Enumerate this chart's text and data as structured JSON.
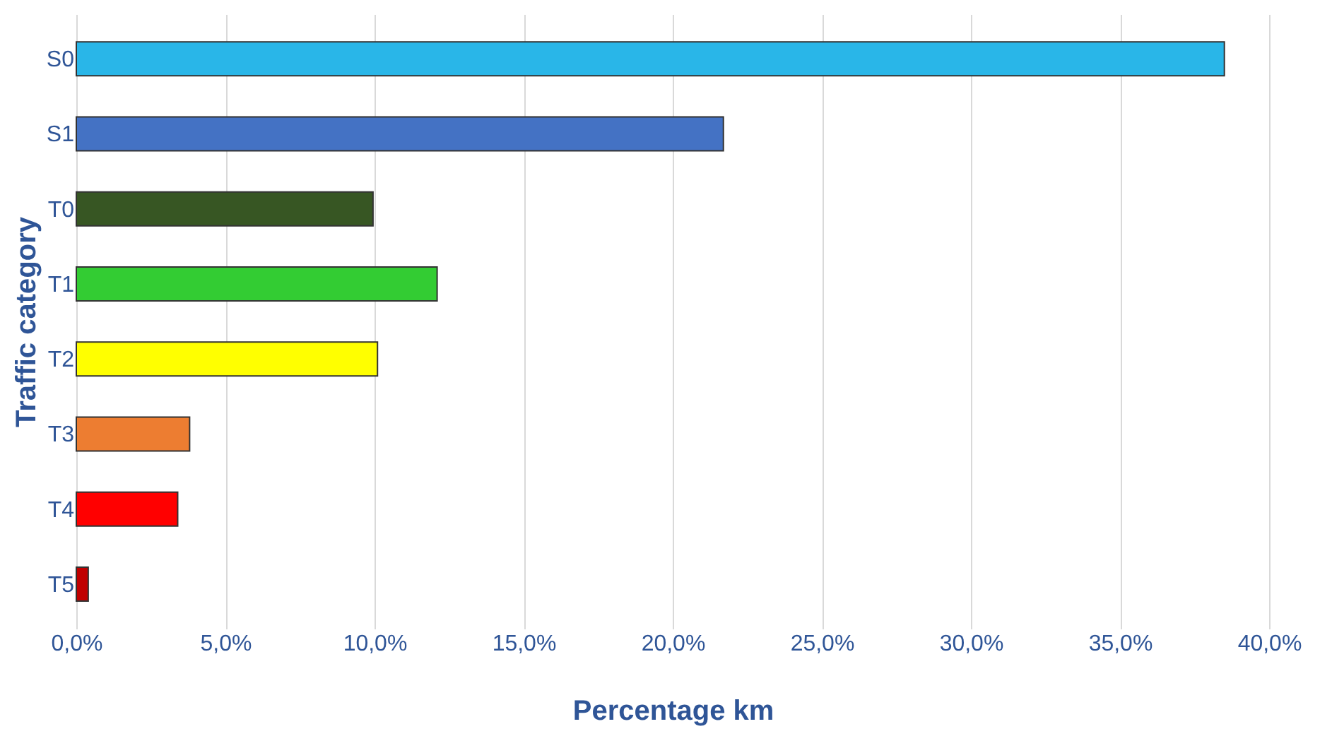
{
  "chart_data": {
    "type": "bar",
    "orientation": "horizontal",
    "xlabel": "Percentage km",
    "ylabel": "Traffic category",
    "categories": [
      "S0",
      "S1",
      "T0",
      "T1",
      "T2",
      "T3",
      "T4",
      "T5"
    ],
    "values": [
      38.5,
      21.7,
      9.95,
      12.1,
      10.1,
      3.8,
      3.4,
      0.4
    ],
    "colors": [
      "#29b6e8",
      "#4472c4",
      "#375623",
      "#33cc33",
      "#ffff00",
      "#ed7d31",
      "#ff0000",
      "#c00000"
    ],
    "xlim": [
      0,
      40
    ],
    "xticks": [
      {
        "value": 0,
        "label": "0,0%"
      },
      {
        "value": 5,
        "label": "5,0%"
      },
      {
        "value": 10,
        "label": "10,0%"
      },
      {
        "value": 15,
        "label": "15,0%"
      },
      {
        "value": 20,
        "label": "20,0%"
      },
      {
        "value": 25,
        "label": "25,0%"
      },
      {
        "value": 30,
        "label": "30,0%"
      },
      {
        "value": 35,
        "label": "35,0%"
      },
      {
        "value": 40,
        "label": "40,0%"
      }
    ],
    "grid": "x"
  }
}
